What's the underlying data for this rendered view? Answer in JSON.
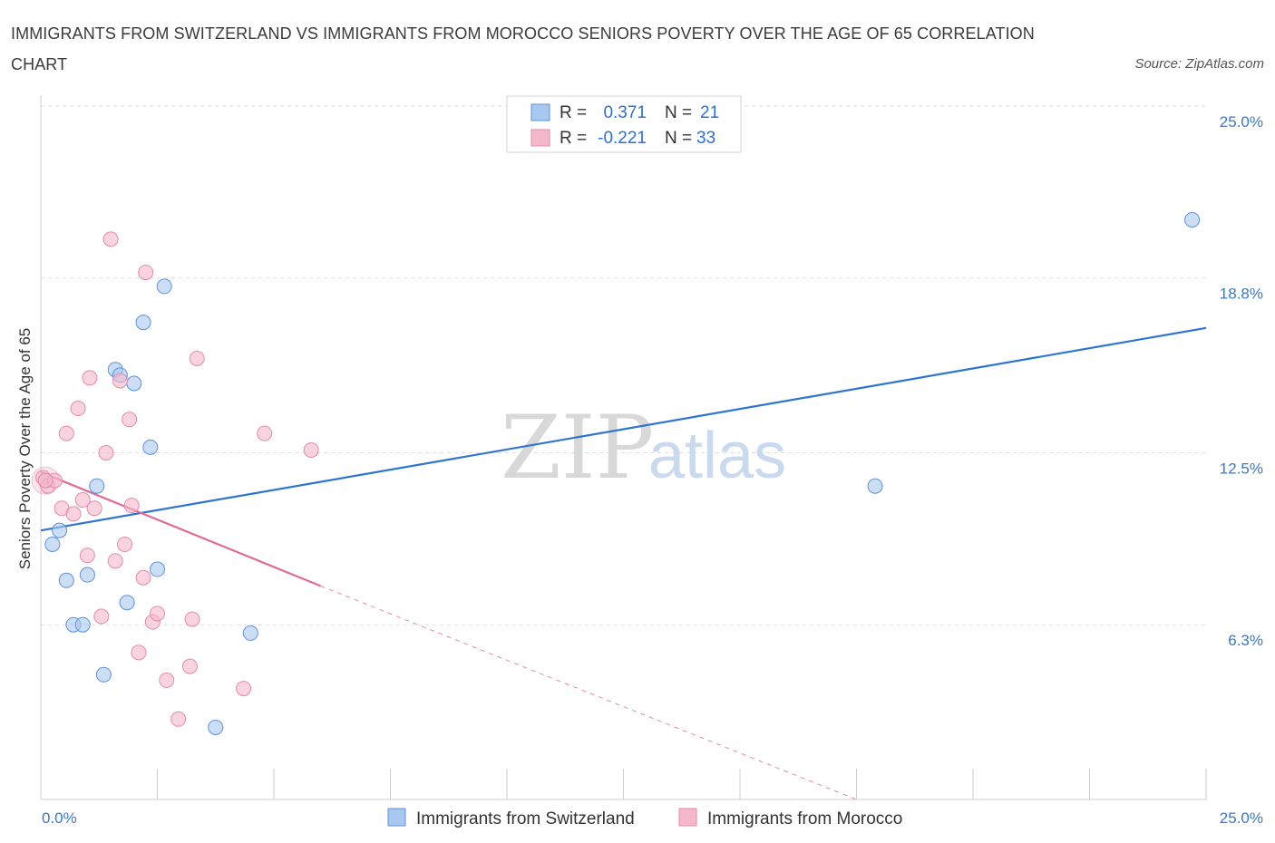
{
  "header": {
    "title": "IMMIGRANTS FROM SWITZERLAND VS IMMIGRANTS FROM MOROCCO SENIORS POVERTY OVER THE AGE OF 65 CORRELATION CHART",
    "source": "Source: ZipAtlas.com"
  },
  "watermark": {
    "zip": "ZIP",
    "atlas": "atlas"
  },
  "colors": {
    "switzerland": "#a9c8f0",
    "switzerland_line": "#2f74d0",
    "morocco": "#f5b8cb",
    "morocco_line": "#e06a98",
    "grid": "#d9dee6",
    "axis_text": "#3a78c8"
  },
  "chart_data": {
    "type": "scatter",
    "title": "IMMIGRANTS FROM SWITZERLAND VS IMMIGRANTS FROM MOROCCO SENIORS POVERTY OVER THE AGE OF 65 CORRELATION CHART",
    "xlabel": "",
    "ylabel": "Seniors Poverty Over the Age of 65",
    "xlim": [
      0,
      25
    ],
    "ylim": [
      0,
      25
    ],
    "x_tick_labels": [
      "0.0%",
      "25.0%"
    ],
    "y_ticks": [
      6.3,
      12.5,
      18.8,
      25.0
    ],
    "y_tick_labels": [
      "6.3%",
      "12.5%",
      "18.8%",
      "25.0%"
    ],
    "legend": {
      "entries": [
        {
          "r_label": "R =",
          "r_value": "0.371",
          "n_label": "N =",
          "n_value": "21"
        },
        {
          "r_label": "R =",
          "r_value": "-0.221",
          "n_label": "N =",
          "n_value": "33"
        }
      ],
      "placement": "top-center"
    },
    "series": [
      {
        "name": "Immigrants from Switzerland",
        "points": [
          [
            0.1,
            11.5
          ],
          [
            0.25,
            9.2
          ],
          [
            0.4,
            9.7
          ],
          [
            0.55,
            7.9
          ],
          [
            0.7,
            6.3
          ],
          [
            0.9,
            6.3
          ],
          [
            1.0,
            8.1
          ],
          [
            1.2,
            11.3
          ],
          [
            1.35,
            4.5
          ],
          [
            1.6,
            15.5
          ],
          [
            1.7,
            15.3
          ],
          [
            1.85,
            7.1
          ],
          [
            2.0,
            15.0
          ],
          [
            2.2,
            17.2
          ],
          [
            2.35,
            12.7
          ],
          [
            2.5,
            8.3
          ],
          [
            2.65,
            18.5
          ],
          [
            3.75,
            2.6
          ],
          [
            4.5,
            6.0
          ],
          [
            17.9,
            11.3
          ],
          [
            24.7,
            20.9
          ]
        ],
        "trend": {
          "x": [
            0,
            25
          ],
          "y": [
            9.7,
            17.0
          ],
          "style": "solid"
        }
      },
      {
        "name": "Immigrants from Morocco",
        "points": [
          [
            0.05,
            11.6
          ],
          [
            0.15,
            11.3
          ],
          [
            0.3,
            11.5
          ],
          [
            0.45,
            10.5
          ],
          [
            0.55,
            13.2
          ],
          [
            0.7,
            10.3
          ],
          [
            0.8,
            14.1
          ],
          [
            0.9,
            10.8
          ],
          [
            1.0,
            8.8
          ],
          [
            1.05,
            15.2
          ],
          [
            1.15,
            10.5
          ],
          [
            1.3,
            6.6
          ],
          [
            1.4,
            12.5
          ],
          [
            1.5,
            20.2
          ],
          [
            1.6,
            8.6
          ],
          [
            1.7,
            15.1
          ],
          [
            1.8,
            9.2
          ],
          [
            1.9,
            13.7
          ],
          [
            1.95,
            10.6
          ],
          [
            2.1,
            5.3
          ],
          [
            2.2,
            8.0
          ],
          [
            2.25,
            19.0
          ],
          [
            2.4,
            6.4
          ],
          [
            2.5,
            6.7
          ],
          [
            2.7,
            4.3
          ],
          [
            2.95,
            2.9
          ],
          [
            3.2,
            4.8
          ],
          [
            3.25,
            6.5
          ],
          [
            3.35,
            15.9
          ],
          [
            4.35,
            4.0
          ],
          [
            4.8,
            13.2
          ],
          [
            5.8,
            12.6
          ],
          [
            0.1,
            11.5
          ]
        ],
        "trend": {
          "x": [
            0,
            6.0
          ],
          "y": [
            11.8,
            7.7
          ],
          "style": "solid"
        },
        "trend_extension": {
          "x": [
            6.0,
            17.5
          ],
          "y": [
            7.7,
            0.0
          ],
          "style": "dashed"
        }
      }
    ]
  },
  "bottom_legend": [
    {
      "label": "Immigrants from Switzerland"
    },
    {
      "label": "Immigrants from Morocco"
    }
  ]
}
